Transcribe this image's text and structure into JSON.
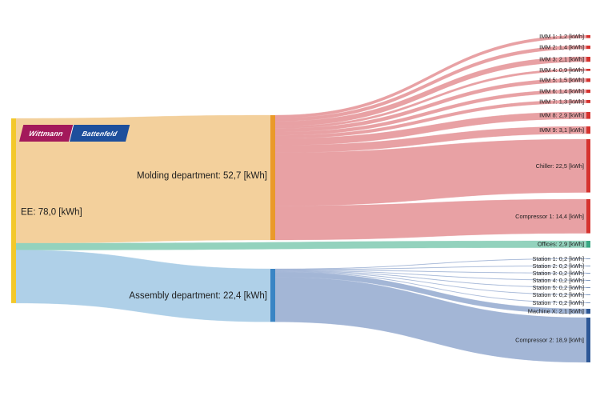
{
  "logo": {
    "left_text": "Wittmann",
    "right_text": "Battenfeld",
    "left_color": "#a3195b",
    "right_color": "#1d4f9c"
  },
  "colors": {
    "source": "#f3c82a",
    "molding_node": "#ea9a2a",
    "assembly_node": "#3a85c4",
    "molding_flow": "#f3d09c",
    "assembly_flow": "#afd0e8",
    "office_flow": "#93d2bd",
    "molding_out_flow": "#e8a1a4",
    "assembly_out_flow": "#a3b6d6",
    "red_node": "#d6332f",
    "blue_node": "#2d5796",
    "office_node": "#3aa784"
  },
  "nodes": {
    "source": {
      "label": "EE: 78,0 [kWh]",
      "value": 78.0
    },
    "molding": {
      "label": "Molding department: 52,7 [kWh]",
      "value": 52.7
    },
    "assembly": {
      "label": "Assembly department: 22,4 [kWh]",
      "value": 22.4
    },
    "offices": {
      "label": "Offices: 2,9 [kWh]",
      "value": 2.9
    }
  },
  "molding_outputs": [
    {
      "label": "IMM 1: 1,2 [kWh]",
      "value": 1.2
    },
    {
      "label": "IMM 2: 1,4 [kWh]",
      "value": 1.4
    },
    {
      "label": "IMM 3: 2,1 [kWh]",
      "value": 2.1
    },
    {
      "label": "IMM 4: 0,9 [kWh]",
      "value": 0.9
    },
    {
      "label": "IMM 5: 1,5 [kWh]",
      "value": 1.5
    },
    {
      "label": "IMM 6: 1,4 [kWh]",
      "value": 1.4
    },
    {
      "label": "IMM 7: 1,3 [kWh]",
      "value": 1.3
    },
    {
      "label": "IMM 8: 2,9 [kWh]",
      "value": 2.9
    },
    {
      "label": "IMM 9: 3,1 [kWh]",
      "value": 3.1
    },
    {
      "label": "Chiller: 22,5 [kWh]",
      "value": 22.5
    },
    {
      "label": "Compressor 1: 14,4 [kWh]",
      "value": 14.4
    }
  ],
  "assembly_outputs": [
    {
      "label": "Station 1: 0,2 [kWh]",
      "value": 0.2
    },
    {
      "label": "Station 2: 0,2 [kWh]",
      "value": 0.2
    },
    {
      "label": "Station 3: 0,2 [kWh]",
      "value": 0.2
    },
    {
      "label": "Station 4: 0,2 [kWh]",
      "value": 0.2
    },
    {
      "label": "Station 5: 0,2 [kWh]",
      "value": 0.2
    },
    {
      "label": "Station 6: 0,2 [kWh]",
      "value": 0.2
    },
    {
      "label": "Station 7: 0,2 [kWh]",
      "value": 0.2
    },
    {
      "label": "Machine X: 2,1 [kWh]",
      "value": 2.1
    },
    {
      "label": "Compressor 2: 18,9 [kWh]",
      "value": 18.9
    }
  ]
}
